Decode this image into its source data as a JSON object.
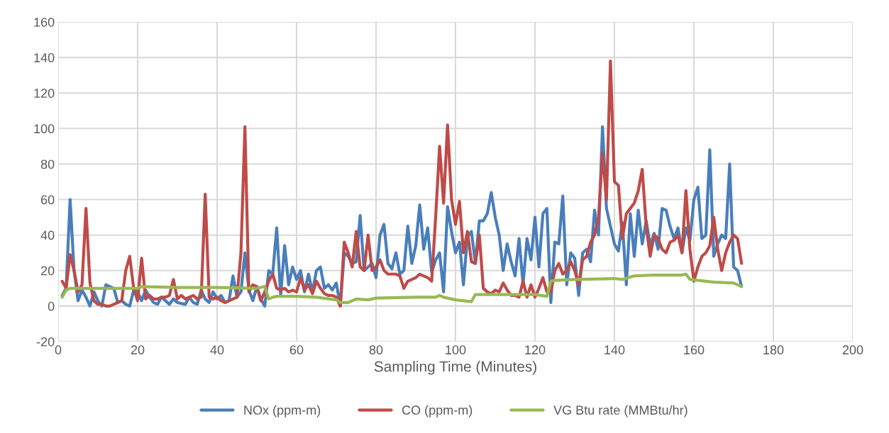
{
  "chart_data": {
    "type": "line",
    "xlabel": "Sampling Time (Minutes)",
    "xlim": [
      0,
      200
    ],
    "xticks": [
      0,
      20,
      40,
      60,
      80,
      100,
      120,
      140,
      160,
      180,
      200
    ],
    "ylim": [
      -20,
      160
    ],
    "yticks": [
      -20,
      0,
      20,
      40,
      60,
      80,
      100,
      120,
      140,
      160
    ],
    "grid": true,
    "legend": "bottom",
    "marker": "none",
    "line_style": "solid",
    "series": [
      {
        "name": "NOx (ppm-m)",
        "color": "#4a7ebb",
        "x": [
          1,
          2,
          3,
          4,
          5,
          6,
          7,
          8,
          9,
          10,
          11,
          12,
          13,
          14,
          15,
          16,
          17,
          18,
          19,
          20,
          21,
          22,
          23,
          24,
          25,
          26,
          27,
          28,
          29,
          30,
          32,
          33,
          34,
          35,
          36,
          37,
          38,
          39,
          40,
          41,
          42,
          43,
          44,
          45,
          46,
          47,
          48,
          49,
          50,
          51,
          52,
          53,
          54,
          55,
          56,
          57,
          58,
          59,
          60,
          61,
          62,
          63,
          64,
          65,
          66,
          67,
          68,
          69,
          70,
          71,
          72,
          73,
          74,
          75,
          76,
          77,
          78,
          79,
          80,
          81,
          82,
          83,
          84,
          85,
          86,
          87,
          88,
          89,
          90,
          91,
          92,
          93,
          94,
          95,
          96,
          97,
          98,
          99,
          100,
          101,
          102,
          103,
          104,
          105,
          106,
          107,
          108,
          109,
          110,
          111,
          112,
          113,
          114,
          115,
          116,
          117,
          118,
          119,
          120,
          121,
          122,
          123,
          124,
          125,
          126,
          127,
          128,
          129,
          130,
          131,
          132,
          133,
          134,
          135,
          136,
          137,
          138,
          139,
          140,
          141,
          142,
          143,
          144,
          145,
          146,
          147,
          148,
          149,
          150,
          151,
          152,
          153,
          154,
          155,
          156,
          157,
          158,
          159,
          160,
          161,
          162,
          163,
          164,
          165,
          166,
          167,
          168,
          169,
          170,
          171,
          172
        ],
        "values": [
          6,
          10,
          60,
          20,
          3,
          9,
          5,
          0,
          8,
          3,
          0,
          12,
          11,
          10,
          2,
          3,
          1,
          0,
          9,
          8,
          3,
          9,
          5,
          2,
          1,
          5,
          3,
          1,
          4,
          2,
          1,
          5,
          2,
          1,
          9,
          4,
          2,
          8,
          4,
          6,
          2,
          3,
          17,
          5,
          8,
          30,
          9,
          3,
          11,
          4,
          0,
          20,
          18,
          44,
          6,
          34,
          12,
          22,
          15,
          20,
          8,
          18,
          8,
          20,
          22,
          10,
          12,
          9,
          13,
          0,
          30,
          28,
          24,
          25,
          51,
          20,
          22,
          24,
          16,
          40,
          46,
          24,
          21,
          30,
          18,
          20,
          45,
          24,
          34,
          57,
          32,
          44,
          19,
          26,
          30,
          8,
          56,
          42,
          30,
          36,
          12,
          39,
          42,
          24,
          48,
          48,
          52,
          64,
          50,
          40,
          20,
          35,
          25,
          17,
          38,
          12,
          38,
          26,
          50,
          22,
          52,
          55,
          2,
          36,
          35,
          62,
          12,
          30,
          27,
          6,
          30,
          32,
          25,
          54,
          40,
          101,
          55,
          45,
          35,
          31,
          47,
          12,
          52,
          28,
          54,
          35,
          48,
          34,
          41,
          32,
          55,
          54,
          45,
          38,
          44,
          30,
          44,
          37,
          60,
          67,
          38,
          40,
          88,
          28,
          35,
          40,
          38,
          80,
          22,
          20,
          11
        ]
      },
      {
        "name": "CO (ppm-m)",
        "color": "#be4b48",
        "x": [
          1,
          2,
          3,
          4,
          5,
          6,
          7,
          8,
          9,
          10,
          11,
          12,
          13,
          14,
          15,
          16,
          17,
          18,
          19,
          20,
          21,
          22,
          23,
          24,
          25,
          26,
          27,
          28,
          29,
          30,
          31,
          32,
          33,
          34,
          35,
          36,
          37,
          38,
          39,
          40,
          41,
          42,
          43,
          44,
          45,
          46,
          47,
          48,
          49,
          50,
          51,
          52,
          53,
          54,
          55,
          56,
          57,
          58,
          59,
          60,
          61,
          62,
          63,
          64,
          65,
          66,
          67,
          68,
          69,
          70,
          71,
          72,
          73,
          74,
          75,
          76,
          77,
          78,
          79,
          80,
          81,
          82,
          83,
          84,
          85,
          86,
          87,
          88,
          89,
          90,
          91,
          92,
          93,
          94,
          95,
          96,
          97,
          98,
          99,
          100,
          101,
          102,
          103,
          104,
          105,
          106,
          107,
          108,
          109,
          110,
          111,
          112,
          113,
          114,
          115,
          116,
          117,
          118,
          119,
          120,
          121,
          122,
          123,
          124,
          125,
          126,
          127,
          128,
          129,
          130,
          131,
          132,
          133,
          134,
          135,
          136,
          137,
          138,
          139,
          140,
          141,
          142,
          143,
          144,
          145,
          146,
          147,
          148,
          149,
          150,
          151,
          152,
          153,
          154,
          155,
          156,
          157,
          158,
          159,
          160,
          161,
          162,
          163,
          164,
          165,
          166,
          167,
          168,
          169,
          170,
          171,
          172
        ],
        "values": [
          14,
          10,
          29,
          20,
          8,
          12,
          55,
          13,
          3,
          1,
          1,
          0,
          0,
          1,
          2,
          3,
          20,
          28,
          10,
          3,
          27,
          4,
          6,
          4,
          4,
          5,
          5,
          6,
          15,
          4,
          6,
          4,
          5,
          6,
          4,
          5,
          63,
          5,
          4,
          5,
          3,
          2,
          3,
          4,
          5,
          30,
          101,
          8,
          12,
          11,
          3,
          8,
          14,
          18,
          10,
          9,
          10,
          8,
          9,
          8,
          16,
          9,
          12,
          7,
          14,
          10,
          7,
          6,
          6,
          5,
          0,
          36,
          30,
          22,
          42,
          22,
          20,
          40,
          20,
          22,
          26,
          20,
          18,
          18,
          18,
          17,
          10,
          14,
          15,
          16,
          18,
          17,
          16,
          14,
          50,
          90,
          58,
          102,
          60,
          46,
          59,
          30,
          42,
          25,
          24,
          40,
          10,
          8,
          7,
          9,
          8,
          13,
          9,
          6,
          6,
          5,
          14,
          5,
          12,
          5,
          10,
          16,
          8,
          8,
          20,
          24,
          18,
          20,
          25,
          20,
          12,
          26,
          28,
          36,
          40,
          50,
          86,
          60,
          138,
          70,
          68,
          38,
          52,
          55,
          58,
          65,
          77,
          45,
          28,
          40,
          38,
          32,
          30,
          36,
          37,
          40,
          30,
          65,
          32,
          14,
          22,
          28,
          30,
          34,
          50,
          32,
          20,
          30,
          36,
          40,
          38,
          24
        ]
      },
      {
        "name": "VG Btu rate (MMBtu/hr)",
        "color": "#98b954",
        "x": [
          1,
          2,
          3,
          10,
          20,
          21,
          30,
          40,
          50,
          52,
          53,
          54,
          55,
          60,
          65,
          70,
          71,
          73,
          75,
          78,
          80,
          90,
          95,
          96,
          97,
          100,
          104,
          105,
          110,
          120,
          123,
          124,
          125,
          130,
          140,
          142,
          145,
          150,
          157,
          158,
          159,
          165,
          170,
          172
        ],
        "values": [
          5,
          9,
          10,
          10,
          10,
          11,
          10.5,
          10.5,
          10,
          11,
          4,
          5,
          5.5,
          5.5,
          5,
          3.5,
          2,
          2,
          4,
          3.5,
          4.5,
          5,
          5,
          6,
          5,
          3.5,
          2.5,
          6.5,
          6.5,
          6.5,
          5.5,
          14,
          14.5,
          15,
          15.5,
          15,
          17,
          17.5,
          17.5,
          18,
          15,
          13.5,
          13,
          11
        ]
      }
    ]
  }
}
